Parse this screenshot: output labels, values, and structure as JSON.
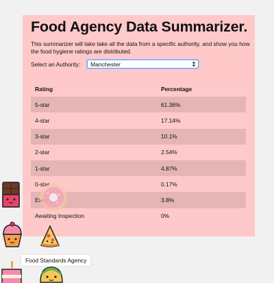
{
  "title": "Food Agency Data Summarizer.",
  "description": "This summarizer will take take all the data from a specific authority, and show you how the food hygiene ratings are distributed.",
  "select": {
    "label": "Select an Authority:",
    "value": "Manchester"
  },
  "table": {
    "headers": [
      "Rating",
      "Percentage"
    ],
    "rows": [
      {
        "rating": "5-star",
        "percentage": "61.36%"
      },
      {
        "rating": "4-star",
        "percentage": "17.14%"
      },
      {
        "rating": "3-star",
        "percentage": "10.1%"
      },
      {
        "rating": "2-star",
        "percentage": "2.54%"
      },
      {
        "rating": "1-star",
        "percentage": "4.87%"
      },
      {
        "rating": "0-star",
        "percentage": "0.17%"
      },
      {
        "rating": "Exempt",
        "percentage": "3.8%"
      },
      {
        "rating": "Awaiting Inspection",
        "percentage": "0%"
      }
    ]
  },
  "tooltip": "Food Standards Agency",
  "colors": {
    "card_bg": "#ffc9ca",
    "row_alt": "#e5b4b5",
    "page_bg": "#f1f1f1",
    "focus_border": "#6ea0e8"
  },
  "icons": [
    "chocolate-bar-icon",
    "donut-icon",
    "cupcake-icon",
    "pizza-slice-icon",
    "cake-icon",
    "taco-icon"
  ]
}
